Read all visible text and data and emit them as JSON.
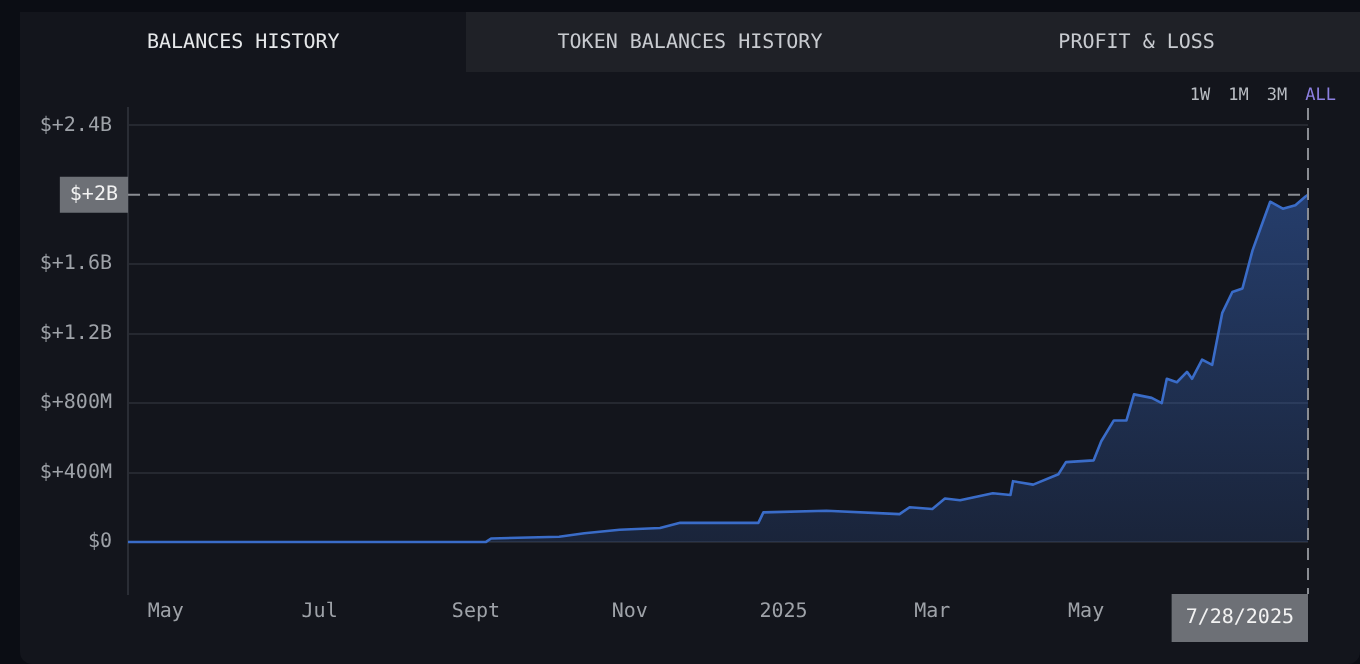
{
  "chart_data": {
    "type": "area",
    "annotations": [
      "BALANCES HISTORY",
      "TOKEN BALANCES HISTORY",
      "PROFIT & LOSS",
      "1W",
      "1M",
      "3M",
      "ALL"
    ],
    "x": [
      "2024-04-16",
      "2024-09-05",
      "2024-09-07",
      "2024-10-04",
      "2024-10-14",
      "2024-10-28",
      "2024-11-13",
      "2024-11-21",
      "2024-12-22",
      "2024-12-24",
      "2025-01-18",
      "2025-02-16",
      "2025-02-20",
      "2025-03-01",
      "2025-03-06",
      "2025-03-12",
      "2025-03-25",
      "2025-04-01",
      "2025-04-02",
      "2025-04-10",
      "2025-04-20",
      "2025-04-23",
      "2025-05-04",
      "2025-05-07",
      "2025-05-12",
      "2025-05-17",
      "2025-05-20",
      "2025-05-27",
      "2025-05-31",
      "2025-06-02",
      "2025-06-06",
      "2025-06-10",
      "2025-06-12",
      "2025-06-16",
      "2025-06-20",
      "2025-06-24",
      "2025-06-28",
      "2025-07-02",
      "2025-07-06",
      "2025-07-10",
      "2025-07-13",
      "2025-07-18",
      "2025-07-23",
      "2025-07-27",
      "2025-07-28"
    ],
    "series": [
      {
        "color": "#3a6cc8",
        "values": [
          0,
          0,
          20000000,
          30000000,
          50000000,
          70000000,
          80000000,
          110000000,
          110000000,
          170000000,
          180000000,
          160000000,
          200000000,
          190000000,
          250000000,
          240000000,
          280000000,
          270000000,
          350000000,
          330000000,
          390000000,
          460000000,
          470000000,
          580000000,
          700000000,
          700000000,
          850000000,
          830000000,
          800000000,
          940000000,
          920000000,
          980000000,
          940000000,
          1050000000,
          1020000000,
          1320000000,
          1440000000,
          1460000000,
          1680000000,
          1840000000,
          1960000000,
          1920000000,
          1940000000,
          1990000000,
          2000000000
        ]
      }
    ],
    "xlim": [
      "2024-04-16",
      "2025-07-28"
    ],
    "xticks": [
      {
        "value": "2024-05-01",
        "label": "May"
      },
      {
        "value": "2024-07-01",
        "label": "Jul"
      },
      {
        "value": "2024-09-01",
        "label": "Sept"
      },
      {
        "value": "2024-11-01",
        "label": "Nov"
      },
      {
        "value": "2025-01-01",
        "label": "2025"
      },
      {
        "value": "2025-03-01",
        "label": "Mar"
      },
      {
        "value": "2025-05-01",
        "label": "May"
      }
    ],
    "ylim": [
      -300000000,
      2500000000
    ],
    "yticks": [
      {
        "value": 0,
        "label": "$0"
      },
      {
        "value": 400000000,
        "label": "$+400M"
      },
      {
        "value": 800000000,
        "label": "$+800M"
      },
      {
        "value": 1200000000,
        "label": "$+1.2B"
      },
      {
        "value": 1600000000,
        "label": "$+1.6B"
      },
      {
        "value": 2400000000,
        "label": "$+2.4B"
      }
    ],
    "ref_lines": [
      {
        "axis": "y",
        "value": 2000000000,
        "label": "$+2B"
      },
      {
        "axis": "x",
        "value": "2025-07-28",
        "label": "7/28/2025"
      }
    ],
    "grid": "y"
  }
}
